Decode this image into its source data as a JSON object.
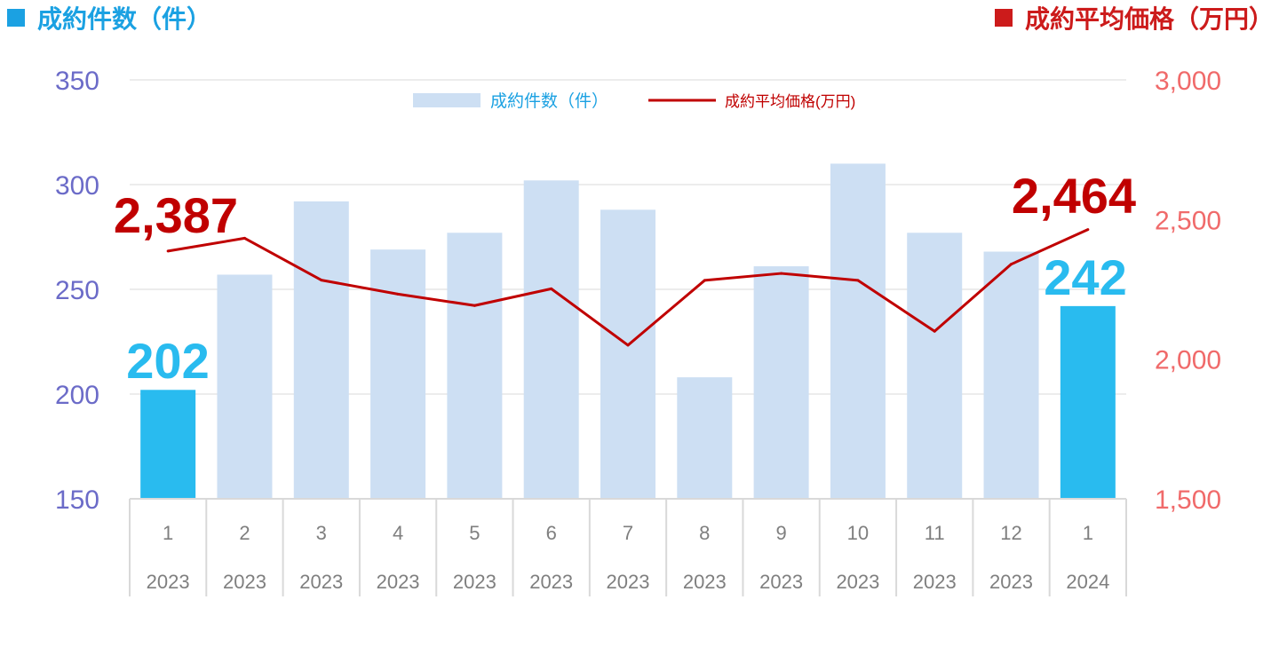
{
  "header": {
    "left_title": "成約件数（件）",
    "right_title": "成約平均価格（万円）"
  },
  "colors": {
    "bar_normal": "#cddff3",
    "bar_highlight": "#29bbef",
    "line": "#c00000",
    "left_axis_text": "#6b6bc8",
    "right_axis_text": "#f06a6a",
    "header_left": "#1ba1e2",
    "header_right": "#cc1b1b",
    "grid": "#d9d9d9",
    "category_text": "#7f7f7f"
  },
  "chart_data": {
    "type": "bar",
    "categories": [
      "1",
      "2",
      "3",
      "4",
      "5",
      "6",
      "7",
      "8",
      "9",
      "10",
      "11",
      "12",
      "1"
    ],
    "category_years": [
      "2023",
      "2023",
      "2023",
      "2023",
      "2023",
      "2023",
      "2023",
      "2023",
      "2023",
      "2023",
      "2023",
      "2023",
      "2024"
    ],
    "series": [
      {
        "name": "成約件数（件）",
        "type": "bar",
        "axis": "left",
        "values": [
          202,
          257,
          292,
          269,
          277,
          302,
          288,
          208,
          261,
          310,
          277,
          268,
          242
        ],
        "highlight_indices": [
          0,
          12
        ]
      },
      {
        "name": "成約平均価格(万円)",
        "type": "line",
        "axis": "right",
        "values": [
          2387,
          2433,
          2283,
          2233,
          2192,
          2252,
          2050,
          2282,
          2307,
          2282,
          2100,
          2340,
          2464
        ]
      }
    ],
    "left_axis": {
      "min": 150,
      "max": 350,
      "ticks": [
        "150",
        "200",
        "250",
        "300",
        "350"
      ]
    },
    "right_axis": {
      "min": 1500,
      "max": 3000,
      "ticks": [
        "1,500",
        "2,000",
        "2,500",
        "3,000"
      ]
    },
    "annotations": [
      {
        "series": "bar",
        "index": 0,
        "text": "202"
      },
      {
        "series": "bar",
        "index": 12,
        "text": "242"
      },
      {
        "series": "line",
        "index": 0,
        "text": "2,387"
      },
      {
        "series": "line",
        "index": 12,
        "text": "2,464"
      }
    ],
    "grid": true,
    "legend": "top-center"
  }
}
